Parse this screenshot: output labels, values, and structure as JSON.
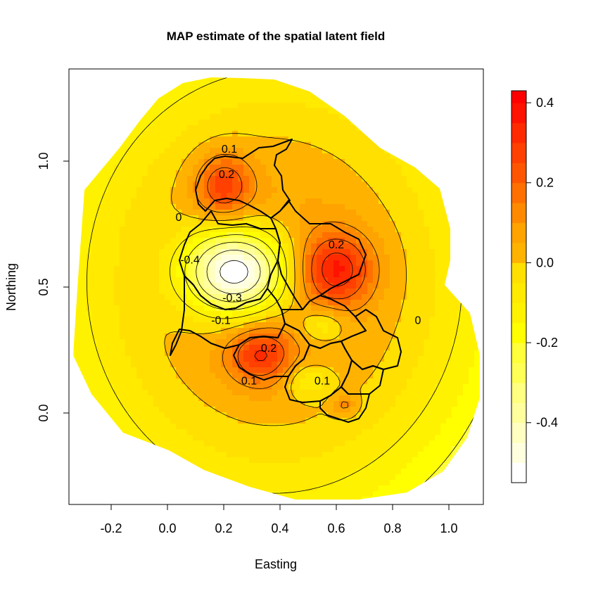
{
  "chart_data": {
    "type": "heatmap",
    "title": "MAP estimate of the spatial latent field",
    "xlabel": "Easting",
    "ylabel": "Northing",
    "xlim": [
      -0.36,
      1.12
    ],
    "ylim": [
      -0.36,
      1.36
    ],
    "x_ticks": [
      {
        "value": -0.2,
        "label": "-0.2"
      },
      {
        "value": 0.0,
        "label": "0.0"
      },
      {
        "value": 0.2,
        "label": "0.2"
      },
      {
        "value": 0.4,
        "label": "0.4"
      },
      {
        "value": 0.6,
        "label": "0.6"
      },
      {
        "value": 0.8,
        "label": "0.8"
      },
      {
        "value": 1.0,
        "label": "1.0"
      }
    ],
    "y_ticks": [
      {
        "value": 0.0,
        "label": "0.0"
      },
      {
        "value": 0.5,
        "label": "0.5"
      },
      {
        "value": 1.0,
        "label": "1.0"
      }
    ],
    "color_scale": {
      "min": -0.55,
      "max": 0.43,
      "ticks": [
        {
          "value": 0.4,
          "label": "0.4"
        },
        {
          "value": 0.2,
          "label": "0.2"
        },
        {
          "value": 0.0,
          "label": "0.0"
        },
        {
          "value": -0.2,
          "label": "-0.2"
        },
        {
          "value": -0.4,
          "label": "-0.4"
        }
      ],
      "bins": [
        {
          "from": -0.55,
          "to": -0.5,
          "color": "#FFFFFF"
        },
        {
          "from": -0.5,
          "to": -0.45,
          "color": "#FFFFE0"
        },
        {
          "from": -0.45,
          "to": -0.4,
          "color": "#FFFFC2"
        },
        {
          "from": -0.4,
          "to": -0.35,
          "color": "#FFFF9E"
        },
        {
          "from": -0.35,
          "to": -0.3,
          "color": "#FFFF80"
        },
        {
          "from": -0.3,
          "to": -0.25,
          "color": "#FFFF55"
        },
        {
          "from": -0.25,
          "to": -0.2,
          "color": "#FFFF3A"
        },
        {
          "from": -0.2,
          "to": -0.15,
          "color": "#FFFF00"
        },
        {
          "from": -0.15,
          "to": -0.1,
          "color": "#FFF200"
        },
        {
          "from": -0.1,
          "to": -0.05,
          "color": "#FFEA00"
        },
        {
          "from": -0.05,
          "to": 0.0,
          "color": "#FFE000"
        },
        {
          "from": 0.0,
          "to": 0.05,
          "color": "#FFB300"
        },
        {
          "from": 0.05,
          "to": 0.1,
          "color": "#FFA300"
        },
        {
          "from": 0.1,
          "to": 0.15,
          "color": "#FF8A00"
        },
        {
          "from": 0.15,
          "to": 0.2,
          "color": "#FF7000"
        },
        {
          "from": 0.2,
          "to": 0.25,
          "color": "#FF5500"
        },
        {
          "from": 0.25,
          "to": 0.3,
          "color": "#FF4000"
        },
        {
          "from": 0.3,
          "to": 0.35,
          "color": "#FF2A00"
        },
        {
          "from": 0.35,
          "to": 0.4,
          "color": "#FF1200"
        },
        {
          "from": 0.4,
          "to": 0.43,
          "color": "#FF0000"
        }
      ]
    },
    "field_components": [
      {
        "x": 0.4,
        "y": 0.55,
        "sx": 0.55,
        "sy": 0.65,
        "amp": 0.0
      },
      {
        "x": 0.2,
        "y": 0.9,
        "sx": 0.07,
        "sy": 0.09,
        "amp": 0.26
      },
      {
        "x": 0.6,
        "y": 0.57,
        "sx": 0.09,
        "sy": 0.1,
        "amp": 0.31
      },
      {
        "x": 0.33,
        "y": 0.23,
        "sx": 0.08,
        "sy": 0.08,
        "amp": 0.26
      },
      {
        "x": 0.24,
        "y": 0.56,
        "sx": 0.13,
        "sy": 0.12,
        "amp": -0.62
      },
      {
        "x": 0.55,
        "y": 0.35,
        "sx": 0.06,
        "sy": 0.05,
        "amp": -0.14
      },
      {
        "x": 0.5,
        "y": 0.13,
        "sx": 0.06,
        "sy": 0.05,
        "amp": -0.13
      },
      {
        "x": 0.63,
        "y": 0.03,
        "sx": 0.03,
        "sy": 0.03,
        "amp": 0.12
      }
    ],
    "contour_labels": [
      {
        "x": 0.22,
        "y": 1.05,
        "text": "0.1"
      },
      {
        "x": 0.21,
        "y": 0.95,
        "text": "0.2"
      },
      {
        "x": 0.04,
        "y": 0.78,
        "text": "0"
      },
      {
        "x": 0.6,
        "y": 0.67,
        "text": "0.2"
      },
      {
        "x": 0.08,
        "y": 0.61,
        "text": "-0.4"
      },
      {
        "x": 0.23,
        "y": 0.46,
        "text": "-0.3"
      },
      {
        "x": 0.19,
        "y": 0.37,
        "text": "-0.1"
      },
      {
        "x": 0.36,
        "y": 0.26,
        "text": "0.2"
      },
      {
        "x": 0.29,
        "y": 0.13,
        "text": "0.1"
      },
      {
        "x": 0.55,
        "y": 0.13,
        "text": "0.1"
      },
      {
        "x": 0.89,
        "y": 0.37,
        "text": "0"
      }
    ]
  }
}
